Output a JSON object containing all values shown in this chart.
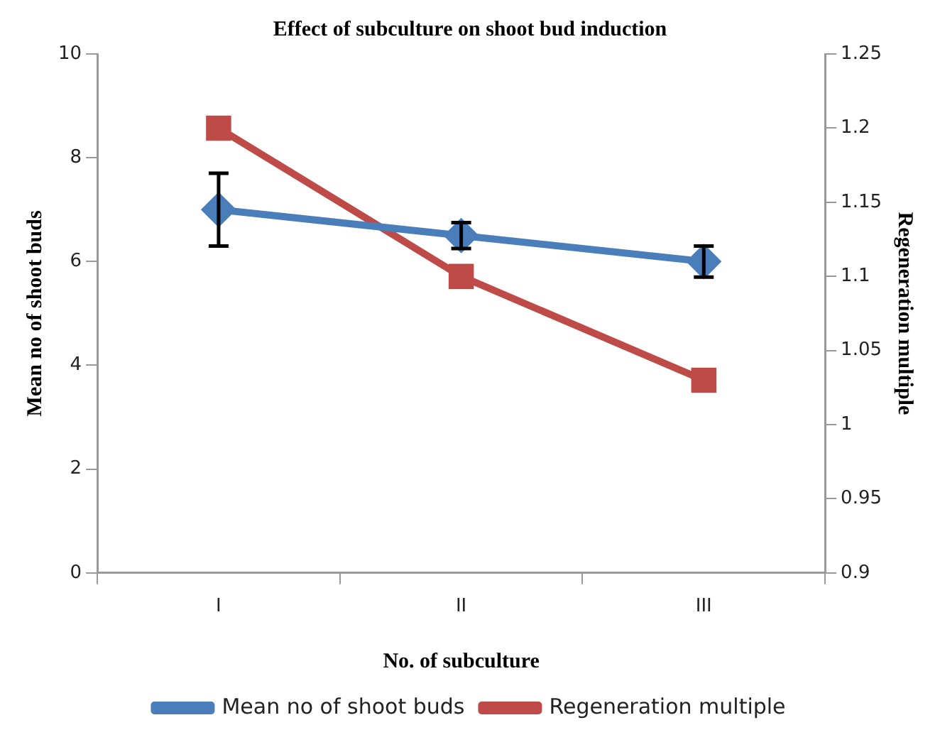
{
  "chart_data": {
    "type": "line",
    "title": "Effect of subculture on shoot bud induction",
    "xlabel": "No. of subculture",
    "ylabel": "Mean no of shoot buds",
    "y2label": "Regeneration multiple",
    "categories": [
      "I",
      "II",
      "III"
    ],
    "series": [
      {
        "name": "Mean no of shoot buds",
        "color": "#4a7ebb",
        "values": [
          7,
          6.5,
          6
        ],
        "errors": [
          0.7,
          0.25,
          0.3
        ],
        "marker": "diamond"
      },
      {
        "name": "Regeneration multiple",
        "color": "#be4b48",
        "values": [
          1.2,
          1.1,
          1.03
        ],
        "axis": "y2",
        "marker": "square"
      }
    ],
    "ylim": [
      0,
      10
    ],
    "yticks": [
      0,
      2,
      4,
      6,
      8,
      10
    ],
    "y2lim": [
      0.9,
      1.25
    ],
    "y2ticks": [
      0.9,
      0.95,
      1,
      1.05,
      1.1,
      1.15,
      1.2,
      1.25
    ],
    "grid": false,
    "legend": "bottom",
    "line_style": "solid"
  }
}
